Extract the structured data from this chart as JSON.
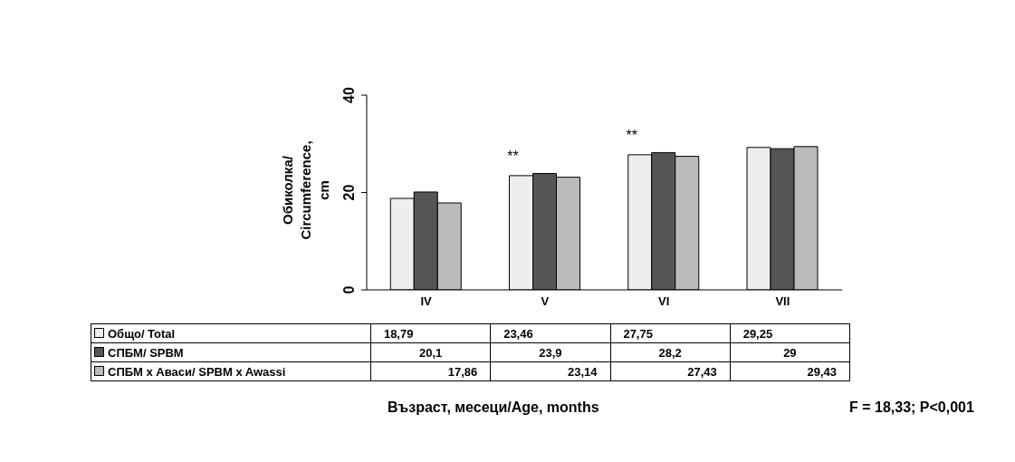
{
  "chart_data": {
    "type": "bar",
    "ylabel": "Обиколка/ Circumference, cm",
    "categories": [
      "IV",
      "V",
      "VI",
      "VII"
    ],
    "series": [
      {
        "name": "Общо/ Total",
        "color": "#eeeeee",
        "values": [
          18.79,
          23.46,
          27.75,
          29.25
        ],
        "value_labels": [
          "18,79",
          "23,46",
          "27,75",
          "29,25"
        ]
      },
      {
        "name": "СПБМ/ SPBM",
        "color": "#555555",
        "values": [
          20.1,
          23.9,
          28.2,
          29
        ],
        "value_labels": [
          "20,1",
          "23,9",
          "28,2",
          "29"
        ]
      },
      {
        "name": "СПБМ х Аваси/ SPBM x Awassi",
        "color": "#bbbbbb",
        "values": [
          17.86,
          23.14,
          27.43,
          29.43
        ],
        "value_labels": [
          "17,86",
          "23,14",
          "27,43",
          "29,43"
        ]
      }
    ],
    "ylim": [
      0,
      40
    ],
    "yticks": [
      0,
      20,
      40
    ],
    "legend": "bottom",
    "annotations": [
      {
        "text": "**",
        "x": "V",
        "y": 23.46
      },
      {
        "text": "**",
        "x": "VI",
        "y": 27.75
      },
      "Възраст, месеци/Age, months",
      "F = 18,33; P<0,001"
    ]
  }
}
